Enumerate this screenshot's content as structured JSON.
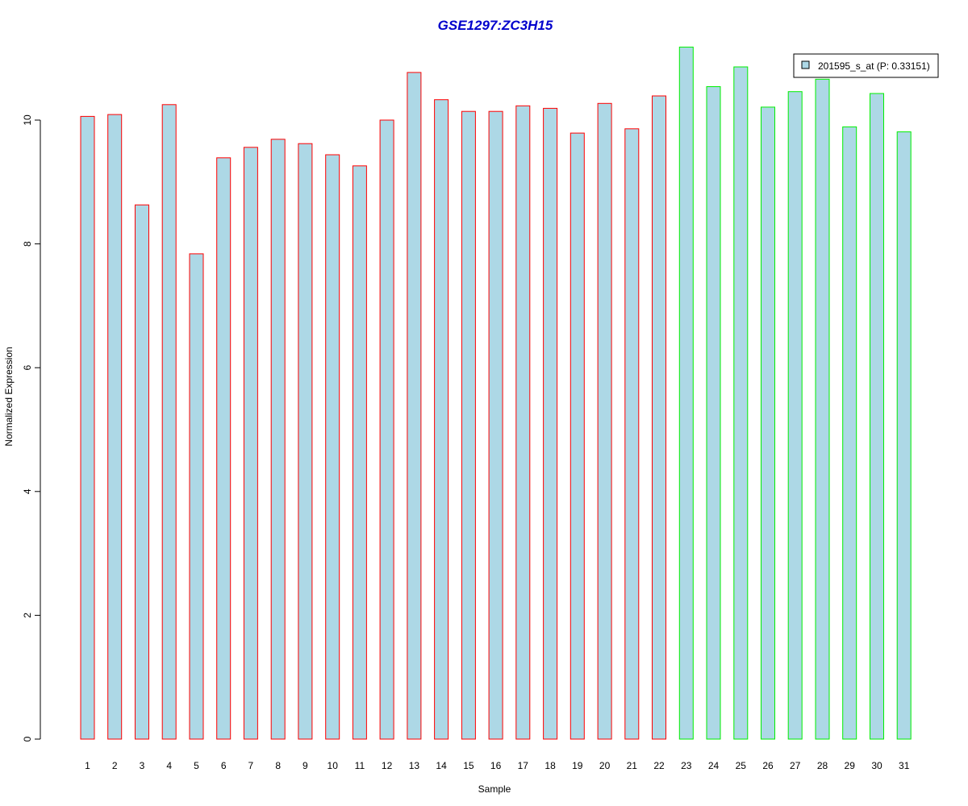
{
  "chart_data": {
    "type": "bar",
    "title": "GSE1297:ZC3H15",
    "xlabel": "Sample",
    "ylabel": "Normalized Expression",
    "ylim": [
      0,
      11.2
    ],
    "yticks": [
      0,
      2,
      4,
      6,
      8,
      10
    ],
    "categories": [
      "1",
      "2",
      "3",
      "4",
      "5",
      "6",
      "7",
      "8",
      "9",
      "10",
      "11",
      "12",
      "13",
      "14",
      "15",
      "16",
      "17",
      "18",
      "19",
      "20",
      "21",
      "22",
      "23",
      "24",
      "25",
      "26",
      "27",
      "28",
      "29",
      "30",
      "31"
    ],
    "series": [
      {
        "name": "201595_s_at (P: 0.33151)",
        "values": [
          10.06,
          10.09,
          8.63,
          10.25,
          7.84,
          9.39,
          9.56,
          9.69,
          9.62,
          9.44,
          9.26,
          10.0,
          10.77,
          10.33,
          10.14,
          10.14,
          10.23,
          10.19,
          9.79,
          10.27,
          9.86,
          10.39,
          11.18,
          10.54,
          10.86,
          10.21,
          10.46,
          10.66,
          9.89,
          10.43,
          9.81
        ]
      }
    ],
    "grid": false,
    "legend_position": "top-right",
    "colors": {
      "fill": "#add8e6",
      "group1_border": "#ff0000",
      "group2_border": "#00ee00",
      "title": "#0000cc"
    },
    "border_groups": [
      "red",
      "red",
      "red",
      "red",
      "red",
      "red",
      "red",
      "red",
      "red",
      "red",
      "red",
      "red",
      "red",
      "red",
      "red",
      "red",
      "red",
      "red",
      "red",
      "red",
      "red",
      "red",
      "green",
      "green",
      "green",
      "green",
      "green",
      "green",
      "green",
      "green",
      "green"
    ]
  }
}
